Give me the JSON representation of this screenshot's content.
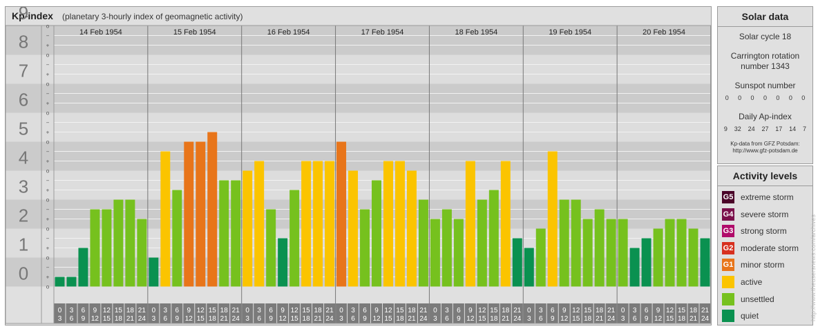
{
  "header": {
    "title": "Kp-index",
    "subtitle": "(planetary 3-hourly index of geomagnetic activity)"
  },
  "chart_data": {
    "type": "bar",
    "title": "Kp-index",
    "subtitle": "(planetary 3-hourly index of geomagnetic activity)",
    "ylim": [
      0,
      9
    ],
    "y_ticks": [
      "0",
      "1",
      "2",
      "3",
      "4",
      "5",
      "6",
      "7",
      "8",
      "9"
    ],
    "sub_ticks": [
      "+",
      "o",
      "−"
    ],
    "days": [
      "14 Feb 1954",
      "15 Feb 1954",
      "16 Feb 1954",
      "17 Feb 1954",
      "18 Feb 1954",
      "19 Feb 1954",
      "20 Feb 1954"
    ],
    "interval_start": [
      "0",
      "3",
      "6",
      "9",
      "12",
      "15",
      "18",
      "21"
    ],
    "interval_end": [
      "3",
      "6",
      "9",
      "12",
      "15",
      "18",
      "21",
      "24"
    ],
    "values": [
      [
        0.333,
        0.333,
        1.333,
        2.667,
        2.667,
        3,
        3,
        2.333
      ],
      [
        1,
        4.667,
        3.333,
        5,
        5,
        5.333,
        3.667,
        3.667
      ],
      [
        4,
        4.333,
        2.667,
        1.667,
        3.333,
        4.333,
        4.333,
        4.333
      ],
      [
        5,
        4,
        2.667,
        3.667,
        4.333,
        4.333,
        4,
        3
      ],
      [
        2.333,
        2.667,
        2.333,
        4.333,
        3,
        3.333,
        4.333,
        1.667
      ],
      [
        1.333,
        2,
        4.667,
        3,
        3,
        2.333,
        2.667,
        2.333
      ],
      [
        2.333,
        1.333,
        1.667,
        2,
        2.333,
        2.333,
        2,
        1.667
      ]
    ],
    "level_colors": {
      "quiet": "#0a9150",
      "unsettled": "#76c11e",
      "active": "#fbc400",
      "minor_storm": "#e8751a",
      "moderate_storm": "#d7301f",
      "strong_storm": "#b00b6a",
      "severe_storm": "#7a0f4a",
      "extreme_storm": "#4a0528"
    },
    "grid": true
  },
  "solar": {
    "title": "Solar data",
    "cycle": "Solar cycle 18",
    "carrington_line1": "Carrington rotation",
    "carrington_line2": "number 1343",
    "sunspot_title": "Sunspot number",
    "sunspot_values": [
      "0",
      "0",
      "0",
      "0",
      "0",
      "0",
      "0"
    ],
    "ap_title": "Daily Ap-index",
    "ap_values": [
      "9",
      "32",
      "24",
      "27",
      "17",
      "14",
      "7"
    ],
    "source_line1": "Kp-data from  GFZ Potsdam:",
    "source_line2": "http://www.gfz-potsdam.de"
  },
  "activity": {
    "title": "Activity levels",
    "levels": [
      {
        "code": "G5",
        "label": "extreme storm",
        "color": "#4a0528"
      },
      {
        "code": "G4",
        "label": "severe storm",
        "color": "#7a0f4a"
      },
      {
        "code": "G3",
        "label": "strong storm",
        "color": "#b00b6a"
      },
      {
        "code": "G2",
        "label": "moderate storm",
        "color": "#d7301f"
      },
      {
        "code": "G1",
        "label": "minor storm",
        "color": "#e8751a"
      },
      {
        "code": "",
        "label": "active",
        "color": "#fbc400"
      },
      {
        "code": "",
        "label": "unsettled",
        "color": "#76c11e"
      },
      {
        "code": "",
        "label": "quiet",
        "color": "#0a9150"
      }
    ]
  },
  "credit": "http://www.theusersnews.com/archives"
}
